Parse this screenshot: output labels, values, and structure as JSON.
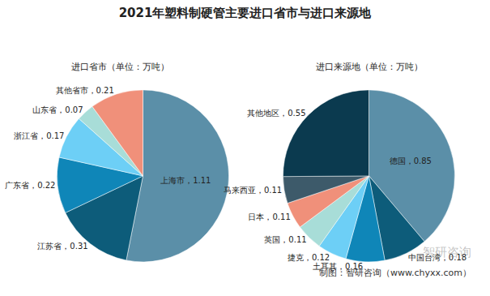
{
  "title": "2021年塑料制硬管主要进口省市与进口来源地",
  "chart_data": [
    {
      "type": "pie",
      "subtitle": "进口省市（单位：万吨）",
      "categories": [
        "上海市",
        "江苏省",
        "广东省",
        "浙江省",
        "山东省",
        "其他省市"
      ],
      "values": [
        1.11,
        0.31,
        0.22,
        0.17,
        0.07,
        0.21
      ],
      "value_labels": [
        "上海市，1.11",
        "江苏省，0.31",
        "广东省，0.22",
        "浙江省，0.17",
        "山东省，0.07",
        "其他省市，0.21"
      ],
      "colors": [
        "#5b8fa8",
        "#0d5c7a",
        "#0f86b8",
        "#6dcff6",
        "#a8ddd8",
        "#f0907a"
      ],
      "data_labels": true
    },
    {
      "type": "pie",
      "subtitle": "进口来源地（单位：万吨）",
      "categories": [
        "德国",
        "中国台湾",
        "土耳其",
        "捷克",
        "英国",
        "日本",
        "马来西亚",
        "其他地区"
      ],
      "values": [
        0.85,
        0.18,
        0.16,
        0.12,
        0.11,
        0.11,
        0.11,
        0.55
      ],
      "value_labels": [
        "德国，0.85",
        "中国台湾，0.18",
        "土耳其，0.16",
        "捷克，0.12",
        "英国，0.11",
        "日本，0.11",
        "马来西亚，0.11",
        "其他地区，0.55"
      ],
      "colors": [
        "#5b8fa8",
        "#0d5c7a",
        "#0f86b8",
        "#6dcff6",
        "#a8ddd8",
        "#f0907a",
        "#3d5a6a",
        "#0b3a4f"
      ],
      "data_labels": true
    }
  ],
  "annotations": [
    "制图：智研咨询（www.chyxx.com）",
    "智研咨询"
  ]
}
